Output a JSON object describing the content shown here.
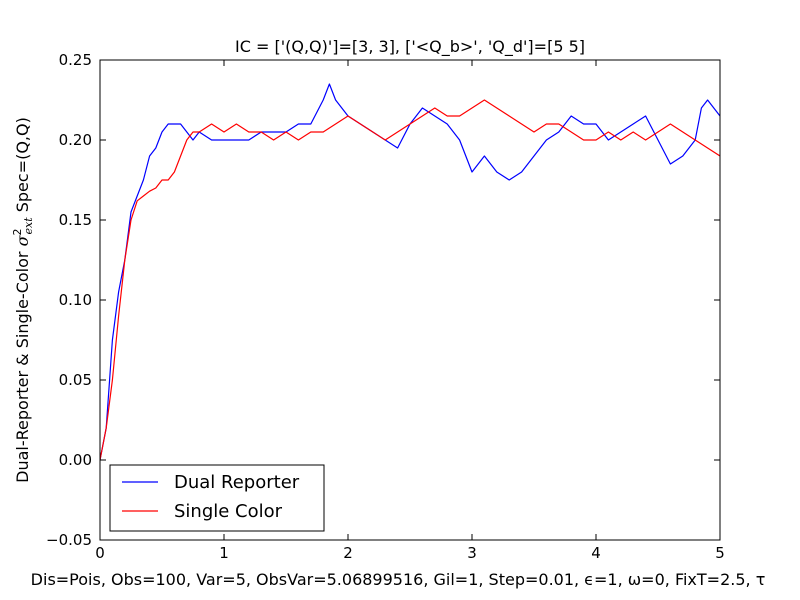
{
  "chart_data": {
    "type": "line",
    "title": "IC = ['(Q,Q)']=[3, 3], ['<Q_b>', 'Q_d']=[5 5]",
    "xlabel": "Dis=Pois, Obs=100, Var=5, ObsVar=5.06899516, Gil=1, Step=0.01, ϵ=1, ω=0, FixT=2.5, τ",
    "ylabel": "Dual-Reporter & Single-Color σ²ext Spec=(Q,Q)",
    "ylabel_parts": {
      "prefix": "Dual-Reporter & Single-Color ",
      "sigma": "σ",
      "sup": "2",
      "sub": "ext",
      "suffix": " Spec=(Q,Q)"
    },
    "xlim": [
      0,
      5
    ],
    "ylim": [
      -0.05,
      0.25
    ],
    "xticks": [
      "0",
      "1",
      "2",
      "3",
      "4",
      "5"
    ],
    "yticks": [
      "−0.05",
      "0.00",
      "0.05",
      "0.10",
      "0.15",
      "0.20",
      "0.25"
    ],
    "grid": false,
    "legend_position": "lower-left",
    "series": [
      {
        "name": "Dual Reporter",
        "color": "#0000ff",
        "x": [
          0,
          0.05,
          0.1,
          0.15,
          0.2,
          0.25,
          0.3,
          0.35,
          0.4,
          0.45,
          0.5,
          0.55,
          0.6,
          0.65,
          0.7,
          0.75,
          0.8,
          0.9,
          1.0,
          1.1,
          1.2,
          1.3,
          1.4,
          1.5,
          1.6,
          1.7,
          1.8,
          1.85,
          1.9,
          2.0,
          2.1,
          2.2,
          2.3,
          2.4,
          2.5,
          2.6,
          2.7,
          2.8,
          2.9,
          3.0,
          3.1,
          3.2,
          3.3,
          3.4,
          3.5,
          3.6,
          3.7,
          3.8,
          3.9,
          4.0,
          4.1,
          4.2,
          4.3,
          4.4,
          4.5,
          4.6,
          4.7,
          4.8,
          4.85,
          4.9,
          4.95,
          5.0
        ],
        "y": [
          0.0,
          0.02,
          0.075,
          0.105,
          0.125,
          0.155,
          0.165,
          0.175,
          0.19,
          0.195,
          0.205,
          0.21,
          0.21,
          0.21,
          0.205,
          0.2,
          0.205,
          0.2,
          0.2,
          0.2,
          0.2,
          0.205,
          0.205,
          0.205,
          0.21,
          0.21,
          0.225,
          0.235,
          0.225,
          0.215,
          0.21,
          0.205,
          0.2,
          0.195,
          0.21,
          0.22,
          0.215,
          0.21,
          0.2,
          0.18,
          0.19,
          0.18,
          0.175,
          0.18,
          0.19,
          0.2,
          0.205,
          0.215,
          0.21,
          0.21,
          0.2,
          0.205,
          0.21,
          0.215,
          0.2,
          0.185,
          0.19,
          0.2,
          0.22,
          0.225,
          0.22,
          0.215
        ]
      },
      {
        "name": "Single Color",
        "color": "#ff0000",
        "x": [
          0,
          0.05,
          0.1,
          0.15,
          0.2,
          0.25,
          0.3,
          0.35,
          0.4,
          0.45,
          0.5,
          0.55,
          0.6,
          0.65,
          0.7,
          0.75,
          0.8,
          0.9,
          1.0,
          1.1,
          1.2,
          1.3,
          1.4,
          1.5,
          1.6,
          1.7,
          1.8,
          1.9,
          2.0,
          2.1,
          2.2,
          2.3,
          2.4,
          2.5,
          2.6,
          2.7,
          2.8,
          2.9,
          3.0,
          3.1,
          3.2,
          3.3,
          3.4,
          3.5,
          3.6,
          3.7,
          3.8,
          3.9,
          4.0,
          4.1,
          4.2,
          4.3,
          4.4,
          4.5,
          4.6,
          4.7,
          4.8,
          4.9,
          5.0
        ],
        "y": [
          0.0,
          0.02,
          0.05,
          0.09,
          0.125,
          0.15,
          0.162,
          0.165,
          0.168,
          0.17,
          0.175,
          0.175,
          0.18,
          0.19,
          0.2,
          0.205,
          0.205,
          0.21,
          0.205,
          0.21,
          0.205,
          0.205,
          0.2,
          0.205,
          0.2,
          0.205,
          0.205,
          0.21,
          0.215,
          0.21,
          0.205,
          0.2,
          0.205,
          0.21,
          0.215,
          0.22,
          0.215,
          0.215,
          0.22,
          0.225,
          0.22,
          0.215,
          0.21,
          0.205,
          0.21,
          0.21,
          0.205,
          0.2,
          0.2,
          0.205,
          0.2,
          0.205,
          0.2,
          0.205,
          0.21,
          0.205,
          0.2,
          0.195,
          0.19
        ]
      }
    ]
  }
}
